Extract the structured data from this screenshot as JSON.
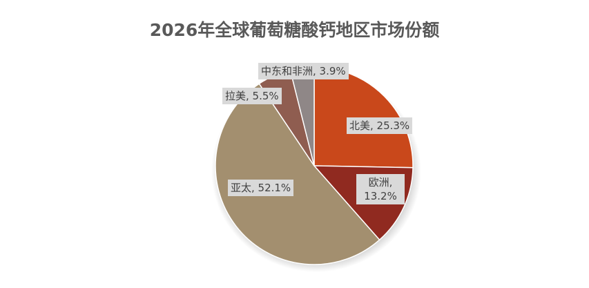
{
  "chart_data": {
    "type": "pie",
    "title": "2026年全球葡萄糖酸钙地区市场份额",
    "values": [
      25.3,
      13.2,
      52.1,
      5.5,
      3.9
    ],
    "value_labels": [
      "北美, 25.3%",
      "欧洲, 13.2%",
      "亚太, 52.1%",
      "拉美, 5.5%",
      "中东和非洲, 3.9%"
    ],
    "colors": [
      "#c9481b",
      "#902a20",
      "#a38f6f",
      "#8f5d50",
      "#8f8787"
    ]
  }
}
